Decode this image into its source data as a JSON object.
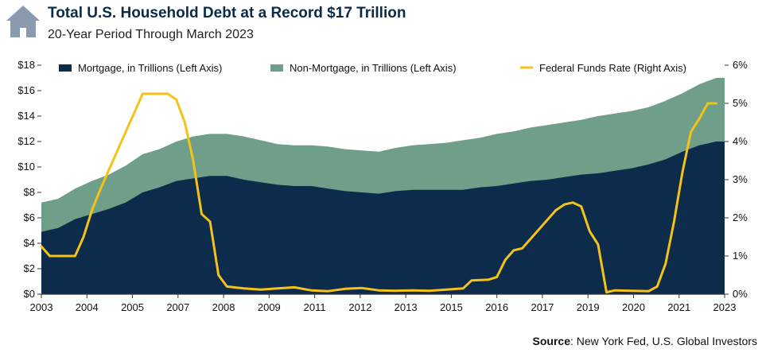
{
  "header": {
    "title": "Total U.S. Household Debt at a Record $17 Trillion",
    "subtitle": "20-Year Period Through March 2023"
  },
  "source": {
    "label": "Source",
    "text": ": New York Fed, U.S. Global Investors"
  },
  "colors": {
    "mortgage": "#0d2b4b",
    "non_mortgage": "#6f9e89",
    "fed_funds": "#f5c218",
    "house_icon": "#8a9bb0"
  },
  "chart_data": {
    "type": "area",
    "x_tick_labels": [
      "2003",
      "2004",
      "2005",
      "2007",
      "2008",
      "2009",
      "2011",
      "2012",
      "2013",
      "2015",
      "2016",
      "2017",
      "2019",
      "2020",
      "2021",
      "2023"
    ],
    "xlim": [
      2003.0,
      2023.25
    ],
    "left_axis": {
      "ylim": [
        0,
        18
      ],
      "ticks": [
        "$0",
        "$2",
        "$4",
        "$6",
        "$8",
        "$10",
        "$12",
        "$14",
        "$16",
        "$18"
      ]
    },
    "right_axis": {
      "ylim": [
        0,
        6
      ],
      "ticks": [
        "0%",
        "1%",
        "2%",
        "3%",
        "4%",
        "5%",
        "6%"
      ]
    },
    "legend": {
      "position": "top",
      "items": [
        "Mortgage, in Trillions (Left Axis)",
        "Non-Mortgage, in Trillions (Left Axis)",
        "Federal Funds Rate (Right Axis)"
      ]
    },
    "series": [
      {
        "name": "Mortgage, in Trillions (Left Axis)",
        "type": "area",
        "axis": "left",
        "points": [
          [
            2003.0,
            4.9
          ],
          [
            2003.5,
            5.2
          ],
          [
            2004.0,
            5.9
          ],
          [
            2004.5,
            6.3
          ],
          [
            2005.0,
            6.7
          ],
          [
            2005.5,
            7.2
          ],
          [
            2006.0,
            8.0
          ],
          [
            2006.5,
            8.4
          ],
          [
            2007.0,
            8.9
          ],
          [
            2007.5,
            9.1
          ],
          [
            2008.0,
            9.3
          ],
          [
            2008.5,
            9.3
          ],
          [
            2009.0,
            9.0
          ],
          [
            2009.5,
            8.8
          ],
          [
            2010.0,
            8.6
          ],
          [
            2010.5,
            8.5
          ],
          [
            2011.0,
            8.5
          ],
          [
            2011.5,
            8.3
          ],
          [
            2012.0,
            8.1
          ],
          [
            2012.5,
            8.0
          ],
          [
            2013.0,
            7.9
          ],
          [
            2013.5,
            8.1
          ],
          [
            2014.0,
            8.2
          ],
          [
            2014.5,
            8.2
          ],
          [
            2015.0,
            8.2
          ],
          [
            2015.5,
            8.2
          ],
          [
            2016.0,
            8.4
          ],
          [
            2016.5,
            8.5
          ],
          [
            2017.0,
            8.7
          ],
          [
            2017.5,
            8.9
          ],
          [
            2018.0,
            9.0
          ],
          [
            2018.5,
            9.2
          ],
          [
            2019.0,
            9.4
          ],
          [
            2019.5,
            9.5
          ],
          [
            2020.0,
            9.7
          ],
          [
            2020.5,
            9.9
          ],
          [
            2021.0,
            10.2
          ],
          [
            2021.5,
            10.6
          ],
          [
            2022.0,
            11.2
          ],
          [
            2022.5,
            11.7
          ],
          [
            2023.0,
            12.0
          ],
          [
            2023.25,
            12.0
          ]
        ]
      },
      {
        "name": "Non-Mortgage, in Trillions (Left Axis)",
        "type": "area",
        "axis": "left",
        "note_total": "stacked total household debt",
        "points": [
          [
            2003.0,
            7.2
          ],
          [
            2003.5,
            7.5
          ],
          [
            2004.0,
            8.3
          ],
          [
            2004.5,
            8.9
          ],
          [
            2005.0,
            9.4
          ],
          [
            2005.5,
            10.1
          ],
          [
            2006.0,
            11.0
          ],
          [
            2006.5,
            11.4
          ],
          [
            2007.0,
            12.0
          ],
          [
            2007.5,
            12.4
          ],
          [
            2008.0,
            12.6
          ],
          [
            2008.5,
            12.6
          ],
          [
            2009.0,
            12.4
          ],
          [
            2009.5,
            12.1
          ],
          [
            2010.0,
            11.8
          ],
          [
            2010.5,
            11.7
          ],
          [
            2011.0,
            11.7
          ],
          [
            2011.5,
            11.6
          ],
          [
            2012.0,
            11.4
          ],
          [
            2012.5,
            11.3
          ],
          [
            2013.0,
            11.2
          ],
          [
            2013.5,
            11.5
          ],
          [
            2014.0,
            11.7
          ],
          [
            2014.5,
            11.8
          ],
          [
            2015.0,
            11.9
          ],
          [
            2015.5,
            12.1
          ],
          [
            2016.0,
            12.3
          ],
          [
            2016.5,
            12.6
          ],
          [
            2017.0,
            12.8
          ],
          [
            2017.5,
            13.1
          ],
          [
            2018.0,
            13.3
          ],
          [
            2018.5,
            13.5
          ],
          [
            2019.0,
            13.7
          ],
          [
            2019.5,
            14.0
          ],
          [
            2020.0,
            14.2
          ],
          [
            2020.5,
            14.4
          ],
          [
            2021.0,
            14.7
          ],
          [
            2021.5,
            15.2
          ],
          [
            2022.0,
            15.8
          ],
          [
            2022.5,
            16.5
          ],
          [
            2023.0,
            17.0
          ],
          [
            2023.25,
            17.0
          ]
        ]
      },
      {
        "name": "Federal Funds Rate (Right Axis)",
        "type": "line",
        "axis": "right",
        "points": [
          [
            2003.0,
            1.25
          ],
          [
            2003.25,
            1.0
          ],
          [
            2003.5,
            1.0
          ],
          [
            2003.75,
            1.0
          ],
          [
            2004.0,
            1.0
          ],
          [
            2004.25,
            1.5
          ],
          [
            2004.5,
            2.2
          ],
          [
            2004.75,
            2.75
          ],
          [
            2005.0,
            3.25
          ],
          [
            2005.25,
            3.75
          ],
          [
            2005.5,
            4.25
          ],
          [
            2005.75,
            4.75
          ],
          [
            2006.0,
            5.25
          ],
          [
            2006.25,
            5.25
          ],
          [
            2006.5,
            5.25
          ],
          [
            2006.75,
            5.25
          ],
          [
            2007.0,
            5.1
          ],
          [
            2007.25,
            4.5
          ],
          [
            2007.5,
            3.5
          ],
          [
            2007.75,
            2.1
          ],
          [
            2008.0,
            1.9
          ],
          [
            2008.25,
            0.5
          ],
          [
            2008.5,
            0.2
          ],
          [
            2009.0,
            0.15
          ],
          [
            2009.5,
            0.12
          ],
          [
            2010.0,
            0.15
          ],
          [
            2010.5,
            0.18
          ],
          [
            2011.0,
            0.1
          ],
          [
            2011.5,
            0.08
          ],
          [
            2012.0,
            0.14
          ],
          [
            2012.5,
            0.16
          ],
          [
            2013.0,
            0.1
          ],
          [
            2013.5,
            0.09
          ],
          [
            2014.0,
            0.1
          ],
          [
            2014.5,
            0.09
          ],
          [
            2015.0,
            0.12
          ],
          [
            2015.5,
            0.15
          ],
          [
            2015.75,
            0.36
          ],
          [
            2016.25,
            0.38
          ],
          [
            2016.5,
            0.45
          ],
          [
            2016.75,
            0.9
          ],
          [
            2017.0,
            1.15
          ],
          [
            2017.25,
            1.2
          ],
          [
            2017.5,
            1.45
          ],
          [
            2017.75,
            1.7
          ],
          [
            2018.0,
            1.95
          ],
          [
            2018.25,
            2.2
          ],
          [
            2018.5,
            2.35
          ],
          [
            2018.75,
            2.4
          ],
          [
            2019.0,
            2.3
          ],
          [
            2019.25,
            1.65
          ],
          [
            2019.5,
            1.3
          ],
          [
            2019.75,
            0.05
          ],
          [
            2020.0,
            0.1
          ],
          [
            2020.5,
            0.09
          ],
          [
            2021.0,
            0.08
          ],
          [
            2021.25,
            0.2
          ],
          [
            2021.5,
            0.8
          ],
          [
            2021.75,
            1.9
          ],
          [
            2022.0,
            3.2
          ],
          [
            2022.25,
            4.25
          ],
          [
            2022.5,
            4.6
          ],
          [
            2022.75,
            5.0
          ],
          [
            2023.0,
            5.0
          ]
        ]
      }
    ]
  }
}
